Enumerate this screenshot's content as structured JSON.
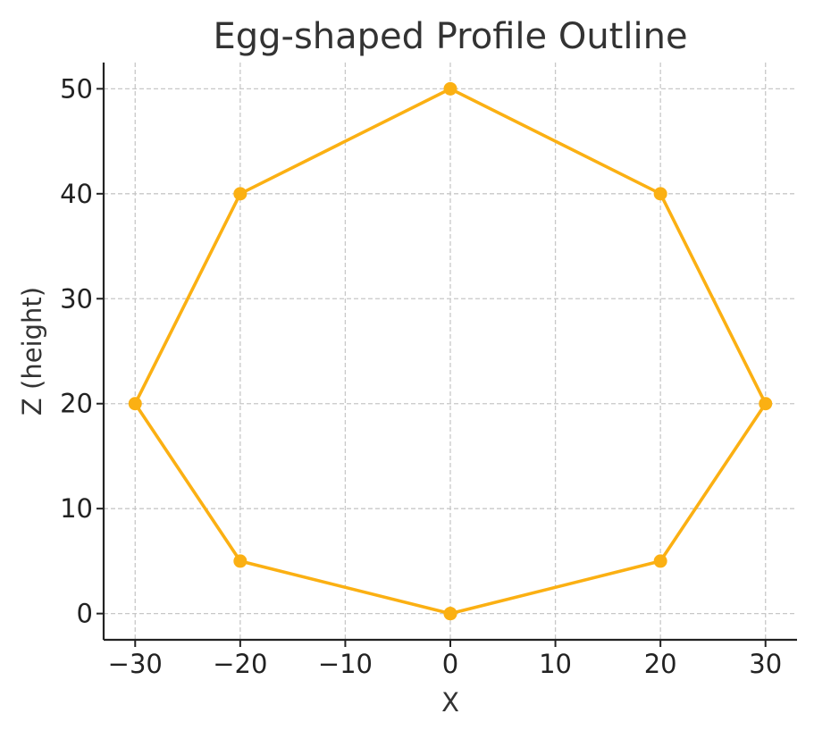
{
  "chart_data": {
    "type": "line",
    "title": "Egg-shaped Profile Outline",
    "xlabel": "X",
    "ylabel": "Z (height)",
    "xlim": [
      -33,
      33
    ],
    "ylim": [
      -2.5,
      52.5
    ],
    "xticks": [
      -30,
      -20,
      -10,
      0,
      10,
      20,
      30
    ],
    "yticks": [
      0,
      10,
      20,
      30,
      40,
      50
    ],
    "grid": true,
    "series": [
      {
        "x": [
          0,
          20,
          30,
          20,
          0,
          -20,
          -30,
          -20,
          0
        ],
        "y": [
          0,
          5,
          20,
          40,
          50,
          40,
          20,
          5,
          0
        ],
        "color": "#FBB013",
        "marker": "circle"
      }
    ]
  }
}
